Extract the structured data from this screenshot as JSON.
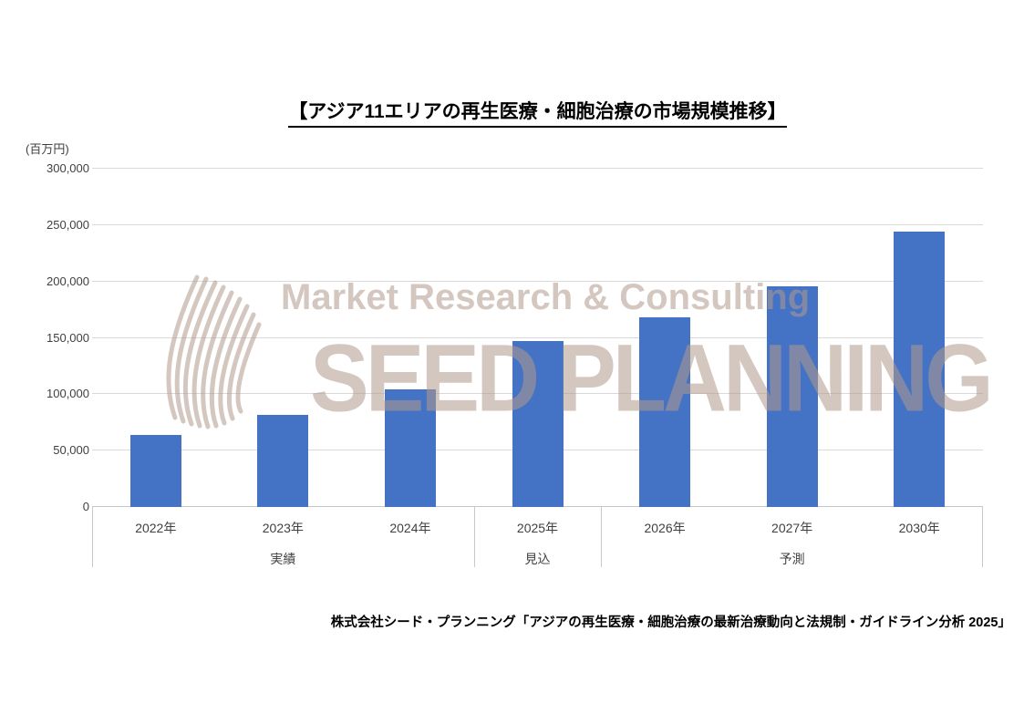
{
  "title": "【アジア11エリアの再生医療・細胞治療の市場規模推移】",
  "source": "株式会社シード・プランニング「アジアの再生医療・細胞治療の最新治療動向と法規制・ガイドライン分析 2025」",
  "watermark": {
    "line1": "Market Research & Consulting",
    "line2": "SEED PLANNING",
    "color": "#b29a8c"
  },
  "colors": {
    "bar": "#4472c4",
    "gridline": "#d9d9d9",
    "axis": "#c6c6c6",
    "text": "#404040",
    "title_text": "#000000"
  },
  "chart_data": {
    "type": "bar",
    "title": "【アジア11エリアの再生医療・細胞治療の市場規模推移】",
    "xlabel": "",
    "ylabel": "(百万円)",
    "categories": [
      "2022年",
      "2023年",
      "2024年",
      "2025年",
      "2026年",
      "2027年",
      "2030年"
    ],
    "values": [
      64000,
      82000,
      104000,
      147000,
      168000,
      196000,
      244000
    ],
    "groups": [
      {
        "label": "実績",
        "span": 3
      },
      {
        "label": "見込",
        "span": 1
      },
      {
        "label": "予測",
        "span": 3
      }
    ],
    "ylim": [
      0,
      300000
    ],
    "ytick_interval": 50000,
    "ytick_labels": [
      "0",
      "50,000",
      "100,000",
      "150,000",
      "200,000",
      "250,000",
      "300,000"
    ],
    "grid": true,
    "legend": "none",
    "bar_color": "#4472c4"
  }
}
